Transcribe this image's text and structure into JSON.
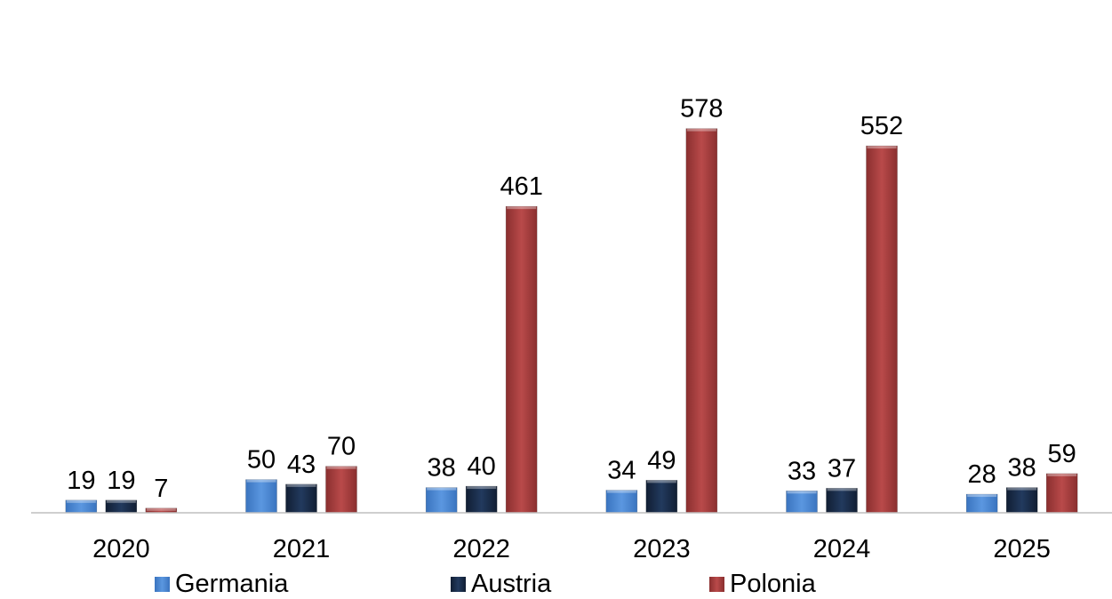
{
  "chart_data": {
    "type": "bar",
    "categories": [
      "2020",
      "2021",
      "2022",
      "2023",
      "2024",
      "2025"
    ],
    "series": [
      {
        "name": "Germania",
        "color": "#4a86d0",
        "values": [
          19,
          50,
          38,
          34,
          33,
          28
        ]
      },
      {
        "name": "Austria",
        "color": "#1a2d4a",
        "values": [
          19,
          43,
          40,
          49,
          37,
          38
        ]
      },
      {
        "name": "Polonia",
        "color": "#a53b3b",
        "values": [
          7,
          70,
          461,
          578,
          552,
          59
        ]
      }
    ],
    "data_labels": true,
    "ylim": [
      0,
      750
    ],
    "grid": false,
    "legend_position": "bottom"
  }
}
